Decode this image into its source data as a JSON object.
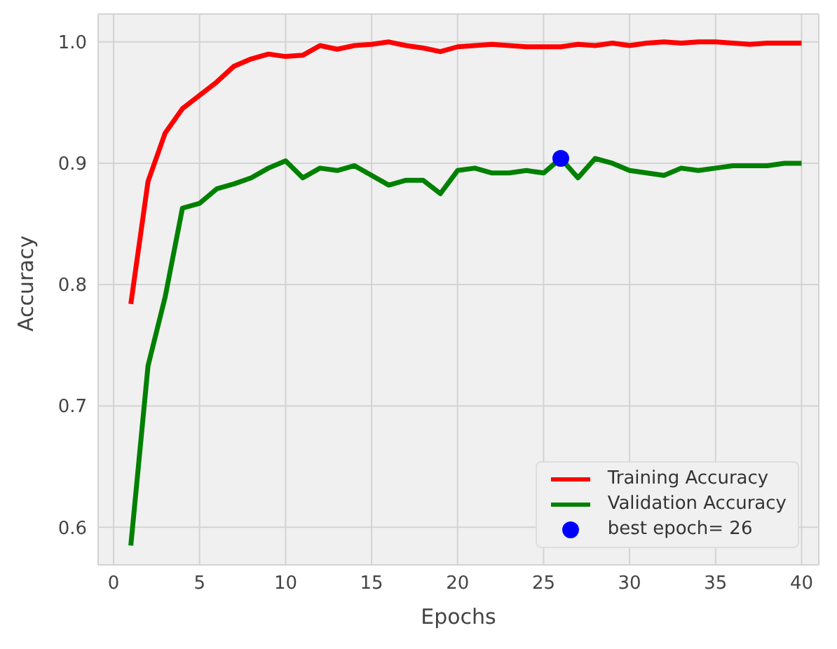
{
  "chart_data": {
    "type": "line",
    "xlabel": "Epochs",
    "ylabel": "Accuracy",
    "x": [
      1,
      2,
      3,
      4,
      5,
      6,
      7,
      8,
      9,
      10,
      11,
      12,
      13,
      14,
      15,
      16,
      17,
      18,
      19,
      20,
      21,
      22,
      23,
      24,
      25,
      26,
      27,
      28,
      29,
      30,
      31,
      32,
      33,
      34,
      35,
      36,
      37,
      38,
      39,
      40
    ],
    "series": [
      {
        "name": "Training Accuracy",
        "color": "#ff0000",
        "marker": "none",
        "values": [
          0.784,
          0.885,
          0.925,
          0.945,
          0.956,
          0.967,
          0.98,
          0.986,
          0.99,
          0.988,
          0.989,
          0.997,
          0.994,
          0.997,
          0.998,
          1.0,
          0.997,
          0.995,
          0.992,
          0.996,
          0.997,
          0.998,
          0.997,
          0.996,
          0.996,
          0.996,
          0.998,
          0.997,
          0.999,
          0.997,
          0.999,
          1.0,
          0.999,
          1.0,
          1.0,
          0.999,
          0.998,
          0.999,
          0.999,
          0.999
        ]
      },
      {
        "name": "Validation Accuracy",
        "color": "#008000",
        "marker": "none",
        "values": [
          0.585,
          0.733,
          0.79,
          0.863,
          0.867,
          0.879,
          0.883,
          0.888,
          0.896,
          0.902,
          0.888,
          0.896,
          0.894,
          0.898,
          0.89,
          0.882,
          0.886,
          0.886,
          0.875,
          0.894,
          0.896,
          0.892,
          0.892,
          0.894,
          0.892,
          0.904,
          0.888,
          0.904,
          0.9,
          0.894,
          0.892,
          0.89,
          0.896,
          0.894,
          0.896,
          0.898,
          0.898,
          0.898,
          0.9,
          0.9
        ]
      },
      {
        "name": "best epoch= 26",
        "type": "scatter",
        "color": "#0000ff",
        "marker": "circle",
        "x": [
          26
        ],
        "values": [
          0.904
        ]
      }
    ],
    "xlim": [
      -0.9,
      41
    ],
    "xticks": [
      0,
      5,
      10,
      15,
      20,
      25,
      30,
      35,
      40
    ],
    "ylim": [
      0.569,
      1.023
    ],
    "yticks": [
      0.6,
      0.7,
      0.8,
      0.9,
      {
        "value": 1.0,
        "label": "1.0"
      }
    ],
    "grid": true,
    "legend": "bottom right",
    "line_style": "solid"
  }
}
